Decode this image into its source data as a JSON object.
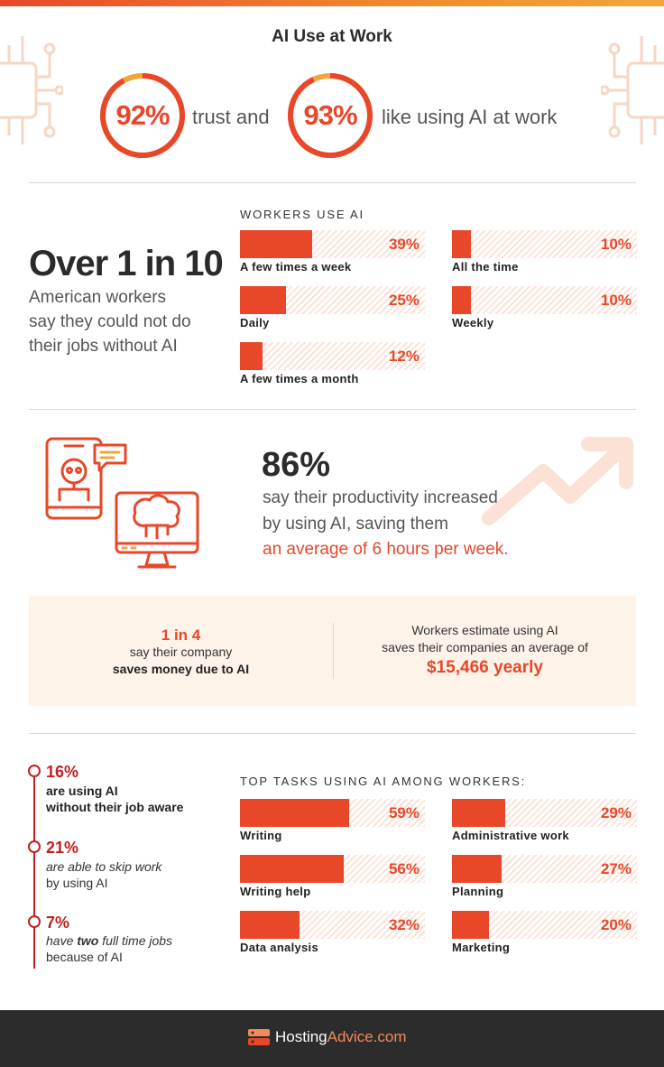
{
  "title": "AI Use at Work",
  "colors": {
    "accent": "#e8472a",
    "dark_red": "#c21f1f",
    "ring_track": "#f4a53a",
    "panel_bg": "#fdf3e9"
  },
  "stats_top": {
    "trust_pct": "92%",
    "trust_value": 92,
    "trust_text": "trust and",
    "like_pct": "93%",
    "like_value": 93,
    "like_text": "like using AI at work"
  },
  "over": {
    "headline": "Over 1 in 10",
    "sub_lines": [
      "American workers",
      "say they could not do",
      "their jobs without AI"
    ]
  },
  "workers_use": {
    "label": "WORKERS USE AI",
    "items": [
      {
        "label": "A few times a week",
        "value": 39,
        "display": "39%"
      },
      {
        "label": "All the time",
        "value": 10,
        "display": "10%"
      },
      {
        "label": "Daily",
        "value": 25,
        "display": "25%"
      },
      {
        "label": "Weekly",
        "value": 10,
        "display": "10%"
      },
      {
        "label": "A few times a month",
        "value": 12,
        "display": "12%"
      }
    ]
  },
  "productivity": {
    "pct": "86%",
    "line1": "say their productivity increased",
    "line2": "by using AI, saving them",
    "line3": "an average of 6 hours per week."
  },
  "panel": {
    "left_hl": "1 in 4",
    "left_line1": "say their company",
    "left_line2": "saves money due to AI",
    "right_line1": "Workers estimate using AI",
    "right_line2": "saves their companies an average of",
    "right_hl": "$15,466 yearly"
  },
  "timeline": [
    {
      "pct": "16%",
      "line1": "are using AI",
      "line2": "without their job aware"
    },
    {
      "pct": "21%",
      "line1": "are able to skip work",
      "line2": "by using AI"
    },
    {
      "pct": "7%",
      "line1_pre": "have ",
      "line1_em": "two",
      "line1_post": " full time jobs",
      "line2": "because of AI"
    }
  ],
  "chart_data": [
    {
      "type": "bar",
      "title": "WORKERS USE AI",
      "categories": [
        "A few times a week",
        "All the time",
        "Daily",
        "Weekly",
        "A few times a month"
      ],
      "values": [
        39,
        10,
        25,
        10,
        12
      ],
      "ylim": [
        0,
        100
      ]
    },
    {
      "type": "bar",
      "title": "TOP TASKS USING AI AMONG WORKERS:",
      "categories": [
        "Writing",
        "Administrative work",
        "Writing help",
        "Planning",
        "Data analysis",
        "Marketing"
      ],
      "values": [
        59,
        29,
        56,
        27,
        32,
        20
      ],
      "ylim": [
        0,
        100
      ]
    }
  ],
  "tasks": {
    "label": "TOP TASKS USING AI AMONG WORKERS:",
    "items": [
      {
        "label": "Writing",
        "value": 59,
        "display": "59%"
      },
      {
        "label": "Administrative work",
        "value": 29,
        "display": "29%"
      },
      {
        "label": "Writing help",
        "value": 56,
        "display": "56%"
      },
      {
        "label": "Planning",
        "value": 27,
        "display": "27%"
      },
      {
        "label": "Data analysis",
        "value": 32,
        "display": "32%"
      },
      {
        "label": "Marketing",
        "value": 20,
        "display": "20%"
      }
    ]
  },
  "footer": {
    "logo_main": "Hosting",
    "logo_accent": "Advice.com"
  },
  "icons": [
    "circuit-icon",
    "phone-robot-icon",
    "chat-bubble-icon",
    "monitor-brain-icon",
    "trend-arrow-icon",
    "server-logo-icon"
  ]
}
